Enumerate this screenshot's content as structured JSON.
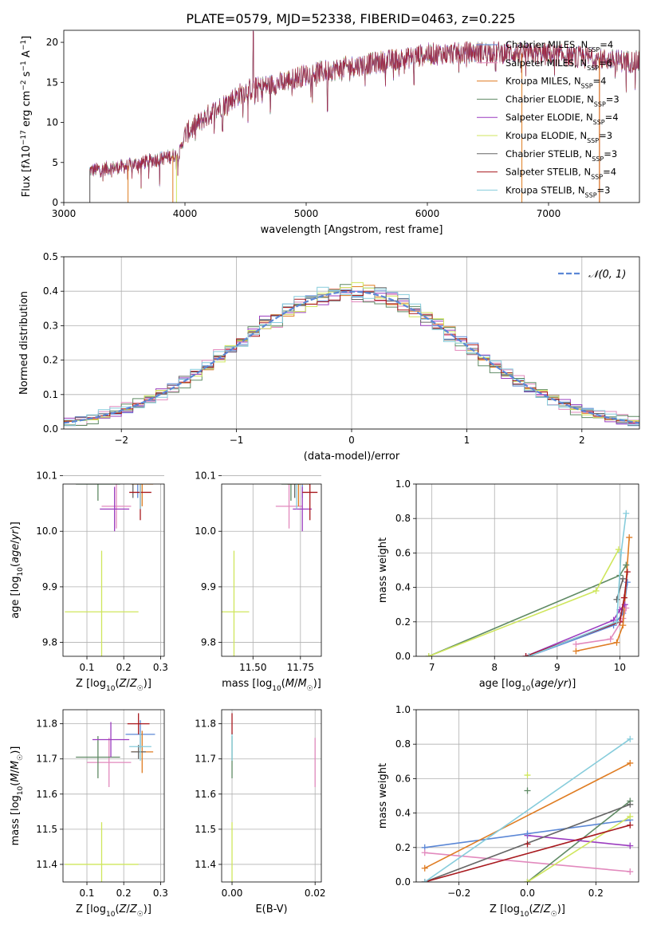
{
  "title": "PLATE=0579, MJD=52338, FIBERID=0463, z=0.225",
  "colors": {
    "chabrier_miles": "#5b87d6",
    "salpeter_miles": "#e289bd",
    "kroupa_miles": "#df7c22",
    "chabrier_elodie": "#5f8a64",
    "salpeter_elodie": "#9b3cbf",
    "kroupa_elodie": "#cfe65c",
    "chabrier_stelib": "#666666",
    "salpeter_stelib": "#a8191e",
    "kroupa_stelib": "#86ccdb",
    "normal": "#5b87d6"
  },
  "chart_data": [
    {
      "type": "line",
      "id": "spectrum",
      "xlabel": "wavelength [Angstrom, rest frame]",
      "ylabel": "Flux [f",
      "xlim": [
        3000,
        7750
      ],
      "ylim": [
        0,
        21.5
      ],
      "xticks": [
        3000,
        4000,
        5000,
        6000,
        7000
      ],
      "yticks": [
        0,
        5,
        10,
        15,
        20
      ],
      "grid": false,
      "legend_position": "upper-right",
      "spectrum_range": [
        3215,
        7750
      ],
      "legend": [
        {
          "key": "chabrier_miles",
          "label": "Chabrier MILES, N",
          "n": "4"
        },
        {
          "key": "salpeter_miles",
          "label": "Salpeter MILES, N",
          "n": "6"
        },
        {
          "key": "kroupa_miles",
          "label": "Kroupa MILES, N",
          "n": "4"
        },
        {
          "key": "chabrier_elodie",
          "label": "Chabrier ELODIE, N",
          "n": "3"
        },
        {
          "key": "salpeter_elodie",
          "label": "Salpeter ELODIE, N",
          "n": "4"
        },
        {
          "key": "kroupa_elodie",
          "label": "Kroupa ELODIE, N",
          "n": "3"
        },
        {
          "key": "chabrier_stelib",
          "label": "Chabrier STELIB, N",
          "n": "3"
        },
        {
          "key": "salpeter_stelib",
          "label": "Salpeter STELIB, N",
          "n": "4"
        },
        {
          "key": "kroupa_stelib",
          "label": "Kroupa STELIB, N",
          "n": "3"
        }
      ],
      "continuum": [
        [
          3215,
          4.0
        ],
        [
          3500,
          4.5
        ],
        [
          3800,
          5.5
        ],
        [
          3950,
          6.0
        ],
        [
          4000,
          8.5
        ],
        [
          4200,
          11.0
        ],
        [
          4500,
          14.0
        ],
        [
          4800,
          15.0
        ],
        [
          5000,
          16.0
        ],
        [
          5300,
          16.8
        ],
        [
          5600,
          17.5
        ],
        [
          5800,
          18.0
        ],
        [
          6000,
          18.5
        ],
        [
          6500,
          18.8
        ],
        [
          7000,
          18.5
        ],
        [
          7750,
          17.5
        ]
      ],
      "spikes": [
        {
          "x": 4563,
          "y": 21.3
        },
        {
          "x": 4310,
          "y": 9.0
        },
        {
          "x": 5175,
          "y": 11.5
        },
        {
          "x": 5890,
          "y": 14.8
        },
        {
          "x": 6563,
          "y": 16.5
        },
        {
          "x": 7240,
          "y": 17.0
        }
      ],
      "model_drops": [
        {
          "key": "kroupa_miles",
          "x": 3530
        },
        {
          "key": "kroupa_miles",
          "x": 3900
        },
        {
          "key": "salpeter_stelib",
          "x": 7420
        },
        {
          "key": "kroupa_miles",
          "x": 7420
        },
        {
          "key": "kroupa_miles",
          "x": 6780
        },
        {
          "key": "kroupa_elodie",
          "x": 3930
        },
        {
          "key": "chabrier_stelib",
          "x": 3215
        }
      ]
    },
    {
      "type": "line",
      "id": "residuals",
      "xlabel": "(data-model)/error",
      "ylabel": "Normed distribution",
      "xlim": [
        -2.5,
        2.5
      ],
      "ylim": [
        0,
        0.5
      ],
      "xticks": [
        -2,
        -1,
        0,
        1,
        2
      ],
      "xtick_labels": [
        "−2",
        "−1",
        "0",
        "1",
        "2"
      ],
      "yticks": [
        0,
        0.1,
        0.2,
        0.3,
        0.4,
        0.5
      ],
      "grid": true,
      "legend_position": "upper-right",
      "legend_label": "𝒩(0, 1)",
      "bin_width": 0.1,
      "series_offsets": {
        "chabrier_miles": 0.011,
        "salpeter_miles": -0.018,
        "kroupa_miles": 0.005,
        "chabrier_elodie": 0.017,
        "salpeter_elodie": -0.012,
        "kroupa_elodie": -0.007,
        "chabrier_stelib": 0.009,
        "salpeter_stelib": 0.003,
        "kroupa_stelib": -0.015
      }
    },
    {
      "type": "scatter",
      "id": "age_vs_z",
      "xlabel": "Z [log",
      "ylabel": "age  [log",
      "xlim": [
        0.035,
        0.31
      ],
      "ylim": [
        9.775,
        10.085
      ],
      "xticks": [
        0.1,
        0.2,
        0.3
      ],
      "yticks": [
        9.8,
        9.9,
        10.0,
        10.1
      ],
      "grid": true,
      "points": [
        {
          "key": "chabrier_miles",
          "x": 0.238,
          "xerr": 0.035,
          "y": 10.09,
          "yerr": 0.03
        },
        {
          "key": "salpeter_miles",
          "x": 0.18,
          "xerr": 0.04,
          "y": 10.045,
          "yerr": 0.04
        },
        {
          "key": "kroupa_miles",
          "x": 0.25,
          "xerr": 0.03,
          "y": 10.085,
          "yerr": 0.04
        },
        {
          "key": "chabrier_elodie",
          "x": 0.13,
          "xerr": 0.06,
          "y": 10.085,
          "yerr": 0.03
        },
        {
          "key": "salpeter_elodie",
          "x": 0.175,
          "xerr": 0.04,
          "y": 10.04,
          "yerr": 0.04
        },
        {
          "key": "kroupa_elodie",
          "x": 0.14,
          "xerr": 0.1,
          "y": 9.855,
          "yerr": 0.11
        },
        {
          "key": "chabrier_stelib",
          "x": 0.225,
          "xerr": 0.02,
          "y": 10.1,
          "yerr": 0.04
        },
        {
          "key": "salpeter_stelib",
          "x": 0.245,
          "xerr": 0.03,
          "y": 10.07,
          "yerr": 0.05
        },
        {
          "key": "kroupa_stelib",
          "x": 0.245,
          "xerr": 0.025,
          "y": 10.09,
          "yerr": 0.05
        }
      ]
    },
    {
      "type": "scatter",
      "id": "age_vs_mass",
      "xlabel": "mass [log",
      "ylabel": "",
      "xlim": [
        11.335,
        11.86
      ],
      "ylim": [
        9.775,
        10.085
      ],
      "xticks": [
        11.5,
        11.75
      ],
      "yticks": [
        9.8,
        9.9,
        10.0,
        10.1
      ],
      "grid": true,
      "points": [
        {
          "key": "chabrier_miles",
          "x": 11.76,
          "xerr": 0.03,
          "y": 10.09,
          "yerr": 0.03
        },
        {
          "key": "salpeter_miles",
          "x": 11.69,
          "xerr": 0.07,
          "y": 10.045,
          "yerr": 0.04
        },
        {
          "key": "kroupa_miles",
          "x": 11.74,
          "xerr": 0.06,
          "y": 10.085,
          "yerr": 0.04
        },
        {
          "key": "chabrier_elodie",
          "x": 11.7,
          "xerr": 0.05,
          "y": 10.085,
          "yerr": 0.03
        },
        {
          "key": "salpeter_elodie",
          "x": 11.76,
          "xerr": 0.05,
          "y": 10.04,
          "yerr": 0.04
        },
        {
          "key": "kroupa_elodie",
          "x": 11.4,
          "xerr": 0.08,
          "y": 9.855,
          "yerr": 0.11
        },
        {
          "key": "chabrier_stelib",
          "x": 11.72,
          "xerr": 0.02,
          "y": 10.1,
          "yerr": 0.04
        },
        {
          "key": "salpeter_stelib",
          "x": 11.8,
          "xerr": 0.04,
          "y": 10.07,
          "yerr": 0.05
        },
        {
          "key": "kroupa_stelib",
          "x": 11.73,
          "xerr": 0.03,
          "y": 10.09,
          "yerr": 0.05
        }
      ]
    },
    {
      "type": "line",
      "id": "weight_vs_age",
      "xlabel": "age  [log",
      "ylabel": "mass weight",
      "xlim": [
        6.75,
        10.3
      ],
      "ylim": [
        0,
        1.0
      ],
      "xticks": [
        7,
        8,
        9,
        10
      ],
      "yticks": [
        0.0,
        0.2,
        0.4,
        0.6,
        0.8,
        1.0
      ],
      "grid": true,
      "series": [
        {
          "key": "chabrier_miles",
          "points": [
            [
              8.55,
              0.0
            ],
            [
              9.9,
              0.18
            ],
            [
              10.05,
              0.25
            ],
            [
              10.12,
              0.43
            ]
          ]
        },
        {
          "key": "salpeter_miles",
          "points": [
            [
              9.3,
              0.07
            ],
            [
              9.85,
              0.1
            ],
            [
              10.05,
              0.22
            ],
            [
              10.1,
              0.28
            ]
          ]
        },
        {
          "key": "kroupa_miles",
          "points": [
            [
              9.3,
              0.03
            ],
            [
              9.95,
              0.08
            ],
            [
              10.05,
              0.18
            ],
            [
              10.15,
              0.69
            ]
          ]
        },
        {
          "key": "chabrier_elodie",
          "points": [
            [
              6.95,
              0.0
            ],
            [
              10.0,
              0.47
            ],
            [
              10.1,
              0.53
            ]
          ]
        },
        {
          "key": "salpeter_elodie",
          "points": [
            [
              8.5,
              0.0
            ],
            [
              9.9,
              0.21
            ],
            [
              10.0,
              0.27
            ],
            [
              10.08,
              0.3
            ]
          ]
        },
        {
          "key": "kroupa_elodie",
          "points": [
            [
              6.95,
              0.0
            ],
            [
              9.62,
              0.38
            ],
            [
              9.98,
              0.62
            ]
          ]
        },
        {
          "key": "chabrier_stelib",
          "points": [
            [
              9.95,
              0.33
            ],
            [
              10.05,
              0.45
            ]
          ]
        },
        {
          "key": "salpeter_stelib",
          "points": [
            [
              8.5,
              0.0
            ],
            [
              10.0,
              0.2
            ],
            [
              10.07,
              0.34
            ],
            [
              10.12,
              0.49
            ]
          ]
        },
        {
          "key": "kroupa_stelib",
          "points": [
            [
              8.55,
              0.0
            ],
            [
              9.95,
              0.2
            ],
            [
              10.02,
              0.6
            ],
            [
              10.1,
              0.83
            ]
          ]
        }
      ]
    },
    {
      "type": "scatter",
      "id": "mass_vs_z",
      "xlabel": "Z [log",
      "ylabel": "mass [log",
      "xlim": [
        0.035,
        0.31
      ],
      "ylim": [
        11.35,
        11.84
      ],
      "xticks": [
        0.1,
        0.2,
        0.3
      ],
      "yticks": [
        11.4,
        11.5,
        11.6,
        11.7,
        11.8
      ],
      "grid": true,
      "points": [
        {
          "key": "chabrier_miles",
          "x": 0.245,
          "xerr": 0.04,
          "y": 11.77,
          "yerr": 0.04
        },
        {
          "key": "salpeter_miles",
          "x": 0.16,
          "xerr": 0.06,
          "y": 11.69,
          "yerr": 0.07
        },
        {
          "key": "kroupa_miles",
          "x": 0.25,
          "xerr": 0.03,
          "y": 11.72,
          "yerr": 0.06
        },
        {
          "key": "chabrier_elodie",
          "x": 0.13,
          "xerr": 0.06,
          "y": 11.705,
          "yerr": 0.06
        },
        {
          "key": "salpeter_elodie",
          "x": 0.165,
          "xerr": 0.05,
          "y": 11.755,
          "yerr": 0.05
        },
        {
          "key": "kroupa_elodie",
          "x": 0.14,
          "xerr": 0.1,
          "y": 11.4,
          "yerr": 0.12
        },
        {
          "key": "chabrier_stelib",
          "x": 0.24,
          "xerr": 0.02,
          "y": 11.72,
          "yerr": 0.02
        },
        {
          "key": "salpeter_stelib",
          "x": 0.24,
          "xerr": 0.03,
          "y": 11.8,
          "yerr": 0.03
        },
        {
          "key": "kroupa_stelib",
          "x": 0.245,
          "xerr": 0.03,
          "y": 11.735,
          "yerr": 0.04
        }
      ]
    },
    {
      "type": "scatter",
      "id": "mass_vs_ebv",
      "xlabel": "E(B-V)",
      "ylabel": "",
      "xlim": [
        -0.0025,
        0.0215
      ],
      "ylim": [
        11.35,
        11.84
      ],
      "xticks": [
        0.0,
        0.02
      ],
      "xtick_labels": [
        "0.00",
        "0.02"
      ],
      "yticks": [
        11.4,
        11.5,
        11.6,
        11.7,
        11.8
      ],
      "grid": true,
      "points": [
        {
          "key": "salpeter_miles",
          "x": 0.02,
          "xerr": 0,
          "y": 11.69,
          "yerr": 0.07
        },
        {
          "key": "kroupa_elodie",
          "x": 0.0,
          "xerr": 0,
          "y": 11.4,
          "yerr": 0.12
        },
        {
          "key": "chabrier_elodie",
          "x": 0.0,
          "xerr": 0,
          "y": 11.705,
          "yerr": 0.06
        },
        {
          "key": "kroupa_stelib",
          "x": 0.0,
          "xerr": 0,
          "y": 11.735,
          "yerr": 0.04
        },
        {
          "key": "salpeter_stelib",
          "x": 0.0,
          "xerr": 0,
          "y": 11.8,
          "yerr": 0.03
        }
      ]
    },
    {
      "type": "line",
      "id": "weight_vs_z",
      "xlabel": "Z [log",
      "ylabel": "mass weight",
      "xlim": [
        -0.325,
        0.325
      ],
      "ylim": [
        0,
        1.0
      ],
      "xticks": [
        -0.2,
        0.0,
        0.2
      ],
      "xtick_labels": [
        "−0.2",
        "0.0",
        "0.2"
      ],
      "yticks": [
        0.0,
        0.2,
        0.4,
        0.6,
        0.8,
        1.0
      ],
      "grid": true,
      "series": [
        {
          "key": "chabrier_miles",
          "points": [
            [
              -0.3,
              0.2
            ],
            [
              0.3,
              0.36
            ]
          ]
        },
        {
          "key": "salpeter_miles",
          "points": [
            [
              -0.3,
              0.17
            ],
            [
              0.3,
              0.06
            ]
          ]
        },
        {
          "key": "kroupa_miles",
          "points": [
            [
              -0.3,
              0.08
            ],
            [
              0.3,
              0.69
            ]
          ]
        },
        {
          "key": "chabrier_elodie",
          "points": [
            [
              0.0,
              0.0
            ],
            [
              0.3,
              0.47
            ]
          ]
        },
        {
          "key": "salpeter_elodie",
          "points": [
            [
              0.0,
              0.27
            ],
            [
              0.3,
              0.21
            ]
          ]
        },
        {
          "key": "kroupa_elodie",
          "points": [
            [
              0.0,
              0.0
            ],
            [
              0.3,
              0.38
            ]
          ]
        },
        {
          "key": "chabrier_stelib",
          "points": [
            [
              -0.3,
              0.0
            ],
            [
              0.3,
              0.45
            ]
          ]
        },
        {
          "key": "salpeter_stelib",
          "points": [
            [
              -0.3,
              0.0
            ],
            [
              0.3,
              0.33
            ]
          ]
        },
        {
          "key": "kroupa_stelib",
          "points": [
            [
              -0.3,
              0.0
            ],
            [
              0.3,
              0.83
            ]
          ]
        }
      ],
      "markers": [
        {
          "key": "kroupa_elodie",
          "x": 0.0,
          "y": 0.62
        },
        {
          "key": "chabrier_elodie",
          "x": 0.0,
          "y": 0.53
        },
        {
          "key": "salpeter_stelib",
          "x": 0.0,
          "y": 0.22
        },
        {
          "key": "chabrier_miles",
          "x": 0.0,
          "y": 0.28
        }
      ]
    }
  ]
}
